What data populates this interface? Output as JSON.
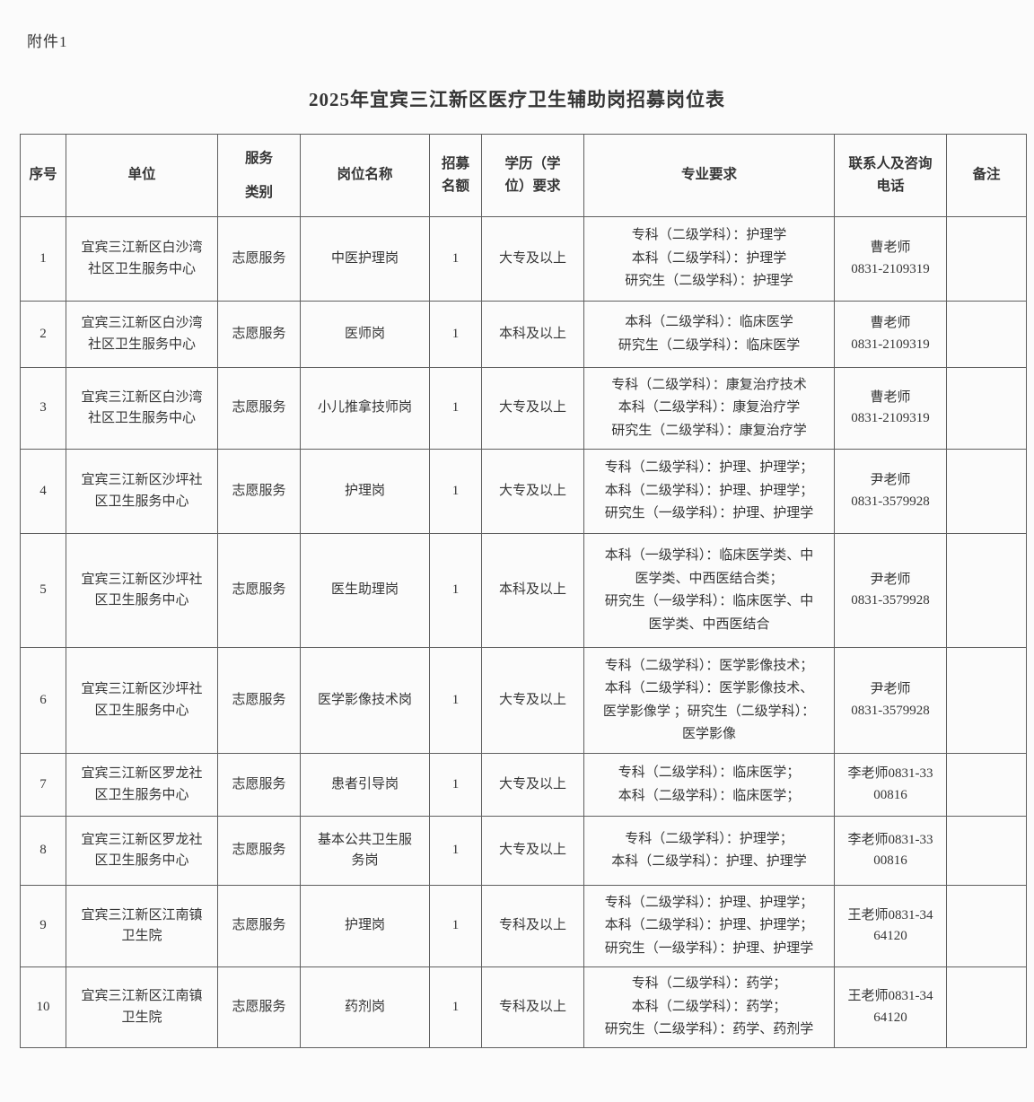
{
  "page": {
    "attachment_label": "附件1",
    "title": "2025年宜宾三江新区医疗卫生辅助岗招募岗位表"
  },
  "table": {
    "headers": {
      "no": "序号",
      "unit": "单位",
      "category": "服务\n类别",
      "position": "岗位名称",
      "quota": "招募\n名额",
      "education": "学历（学\n位）要求",
      "major": "专业要求",
      "contact": "联系人及咨询\n电话",
      "remark": "备注"
    },
    "rows": [
      {
        "no": "1",
        "unit": "宜宾三江新区白沙湾\n社区卫生服务中心",
        "category": "志愿服务",
        "position": "中医护理岗",
        "quota": "1",
        "education": "大专及以上",
        "major": "专科（二级学科）：护理学\n本科（二级学科）：护理学\n研究生（二级学科）：护理学",
        "contact": "曹老师\n0831-2109319",
        "remark": ""
      },
      {
        "no": "2",
        "unit": "宜宾三江新区白沙湾\n社区卫生服务中心",
        "category": "志愿服务",
        "position": "医师岗",
        "quota": "1",
        "education": "本科及以上",
        "major": "本科（二级学科）：临床医学\n研究生（二级学科）：临床医学",
        "contact": "曹老师\n0831-2109319",
        "remark": ""
      },
      {
        "no": "3",
        "unit": "宜宾三江新区白沙湾\n社区卫生服务中心",
        "category": "志愿服务",
        "position": "小儿推拿技师岗",
        "quota": "1",
        "education": "大专及以上",
        "major": "专科（二级学科）：康复治疗技术\n本科（二级学科）：康复治疗学\n研究生（二级学科）：康复治疗学",
        "contact": "曹老师\n0831-2109319",
        "remark": ""
      },
      {
        "no": "4",
        "unit": "宜宾三江新区沙坪社\n区卫生服务中心",
        "category": "志愿服务",
        "position": "护理岗",
        "quota": "1",
        "education": "大专及以上",
        "major": "专科（二级学科）：护理、护理学；\n本科（二级学科）：护理、护理学；\n研究生（一级学科）：护理、护理学",
        "contact": "尹老师\n0831-3579928",
        "remark": ""
      },
      {
        "no": "5",
        "unit": "宜宾三江新区沙坪社\n区卫生服务中心",
        "category": "志愿服务",
        "position": "医生助理岗",
        "quota": "1",
        "education": "本科及以上",
        "major": "本科（一级学科）：临床医学类、中\n医学类、中西医结合类；\n研究生（一级学科）：临床医学、中\n医学类、中西医结合",
        "contact": "尹老师\n0831-3579928",
        "remark": ""
      },
      {
        "no": "6",
        "unit": "宜宾三江新区沙坪社\n区卫生服务中心",
        "category": "志愿服务",
        "position": "医学影像技术岗",
        "quota": "1",
        "education": "大专及以上",
        "major": "专科（二级学科）：医学影像技术；\n本科（二级学科）：医学影像技术、\n医学影像学 ；研究生（二级学科）：\n医学影像",
        "contact": "尹老师\n0831-3579928",
        "remark": ""
      },
      {
        "no": "7",
        "unit": "宜宾三江新区罗龙社\n区卫生服务中心",
        "category": "志愿服务",
        "position": "患者引导岗",
        "quota": "1",
        "education": "大专及以上",
        "major": "专科（二级学科）：临床医学；\n本科（二级学科）：临床医学；",
        "contact": "李老师0831-33\n00816",
        "remark": ""
      },
      {
        "no": "8",
        "unit": "宜宾三江新区罗龙社\n区卫生服务中心",
        "category": "志愿服务",
        "position": "基本公共卫生服\n务岗",
        "quota": "1",
        "education": "大专及以上",
        "major": "专科（二级学科）：护理学；\n本科（二级学科）：护理、护理学",
        "contact": "李老师0831-33\n00816",
        "remark": ""
      },
      {
        "no": "9",
        "unit": "宜宾三江新区江南镇\n卫生院",
        "category": "志愿服务",
        "position": "护理岗",
        "quota": "1",
        "education": "专科及以上",
        "major": "专科（二级学科）：护理、护理学；\n本科（二级学科）：护理、护理学；\n研究生（一级学科）：护理、护理学",
        "contact": "王老师0831-34\n64120",
        "remark": ""
      },
      {
        "no": "10",
        "unit": "宜宾三江新区江南镇\n卫生院",
        "category": "志愿服务",
        "position": "药剂岗",
        "quota": "1",
        "education": "专科及以上",
        "major": "专科（二级学科）：药学；\n本科（二级学科）：药学；\n研究生（二级学科）：药学、药剂学",
        "contact": "王老师0831-34\n64120",
        "remark": ""
      }
    ]
  }
}
